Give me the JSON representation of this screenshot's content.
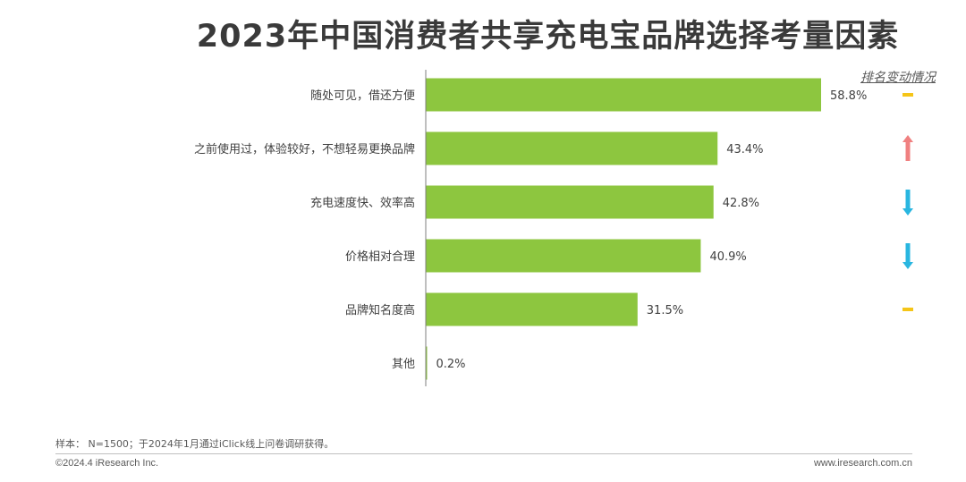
{
  "page": {
    "title": "2023年中国消费者共享充电宝品牌选择考量因素"
  },
  "trend": {
    "header": "排名变动情况"
  },
  "footer": {
    "note": "样本：  N=1500；于2024年1月通过iClick线上问卷调研获得。",
    "copyright": "©2024.4 iResearch Inc.",
    "website": "www.iresearch.com.cn"
  },
  "colors": {
    "bar": "#8dc63f",
    "axis": "#7f7f7f",
    "trend_flat": "#f5c518",
    "trend_up": "#f08080",
    "trend_down": "#29b6e0"
  },
  "chart_data": {
    "type": "bar",
    "orientation": "horizontal",
    "title": "2023年中国消费者共享充电宝品牌选择考量因素",
    "categories": [
      "随处可见，借还方便",
      "之前使用过，体验较好，不想轻易更换品牌",
      "充电速度快、效率高",
      "价格相对合理",
      "品牌知名度高",
      "其他"
    ],
    "values": [
      58.8,
      43.4,
      42.8,
      40.9,
      31.5,
      0.2
    ],
    "value_labels": [
      "58.8%",
      "43.4%",
      "42.8%",
      "40.9%",
      "31.5%",
      "0.2%"
    ],
    "trend": [
      "flat",
      "up",
      "down",
      "down",
      "flat",
      null
    ],
    "xlim": [
      0,
      65
    ],
    "grid": false,
    "legend": "none"
  }
}
